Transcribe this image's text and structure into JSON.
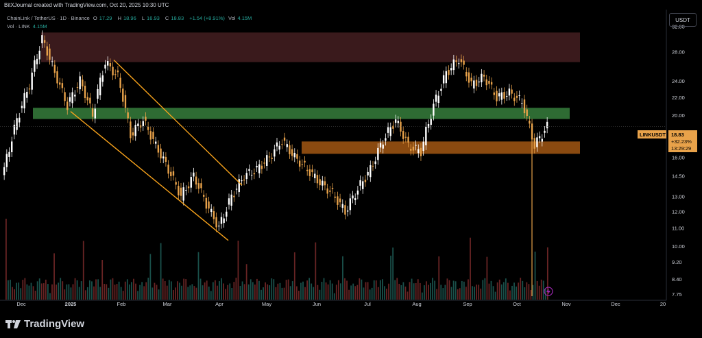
{
  "header": {
    "attribution": "BitXJournal created with TradingView.com, Oct 20, 2025 10:30 UTC"
  },
  "legend": {
    "symbol": "ChainLink / TetherUS · 1D · Binance",
    "open_label": "O",
    "open": "17.29",
    "high_label": "H",
    "high": "18.96",
    "low_label": "L",
    "low": "16.93",
    "close_label": "C",
    "close": "18.83",
    "change": "+1.54 (+8.91%)",
    "vol_label": "Vol",
    "vol": "4.15M"
  },
  "volume_legend": {
    "label": "Vol · LINK",
    "value": "4.15M"
  },
  "currency": "USDT",
  "price_badge": {
    "symbol": "LINKUSDT",
    "price": "18.83",
    "change_pct": "+32.23%",
    "countdown": "13:29:29"
  },
  "footer": {
    "brand": "TradingView"
  },
  "colors": {
    "up": "#26a69a",
    "down": "#e8a24a",
    "channel": "#f7a21b",
    "supply_zone": "#3a1a1c",
    "demand_zone_green": "#2e6b33",
    "demand_zone_orange": "#8a4a10"
  },
  "chart_data": {
    "type": "candlestick",
    "title": "ChainLink / TetherUS · 1D · Binance",
    "y_scale": "log",
    "ylim": [
      7.5,
      35
    ],
    "y_ticks": [
      7.75,
      8.4,
      9.2,
      10.0,
      11.0,
      12.0,
      13.0,
      14.5,
      16.0,
      18.0,
      20.0,
      22.0,
      24.0,
      28.0,
      32.0
    ],
    "x_ticks": [
      "Dec",
      "2025",
      "Feb",
      "Mar",
      "Apr",
      "May",
      "Jun",
      "Jul",
      "Aug",
      "Sep",
      "Oct",
      "Nov",
      "Dec",
      "20"
    ],
    "last_price": 18.83,
    "zones": [
      {
        "name": "supply",
        "low": 26.5,
        "high": 31.0,
        "from": "Dec",
        "to": "Nov",
        "color": "#3a1a1c"
      },
      {
        "name": "green-support",
        "low": 19.6,
        "high": 20.8,
        "from": "Dec",
        "to": "Nov",
        "color": "#2e6b33"
      },
      {
        "name": "orange-support",
        "low": 16.3,
        "high": 17.4,
        "from": "May",
        "to": "Nov",
        "color": "#8a4a10"
      }
    ],
    "channel": {
      "upper": [
        [
          "Feb",
          26.8
        ],
        [
          "Apr",
          13.8
        ]
      ],
      "lower": [
        [
          "Dec",
          20.4
        ],
        [
          "Apr",
          10.3
        ]
      ]
    },
    "close_series": [
      {
        "x": "Dec",
        "close": 15.0
      },
      {
        "x": "Dec",
        "close": 19.5
      },
      {
        "x": "Dec",
        "close": 23.5
      },
      {
        "x": "2025",
        "close": 30.0
      },
      {
        "x": "2025",
        "close": 25.0
      },
      {
        "x": "2025",
        "close": 21.0
      },
      {
        "x": "2025",
        "close": 24.0
      },
      {
        "x": "2025",
        "close": 20.0
      },
      {
        "x": "Feb",
        "close": 26.5
      },
      {
        "x": "Feb",
        "close": 24.5
      },
      {
        "x": "Feb",
        "close": 18.0
      },
      {
        "x": "Feb",
        "close": 19.5
      },
      {
        "x": "Mar",
        "close": 17.0
      },
      {
        "x": "Mar",
        "close": 15.0
      },
      {
        "x": "Mar",
        "close": 13.0
      },
      {
        "x": "Mar",
        "close": 14.5
      },
      {
        "x": "Apr",
        "close": 12.5
      },
      {
        "x": "Apr",
        "close": 11.0
      },
      {
        "x": "Apr",
        "close": 13.0
      },
      {
        "x": "Apr",
        "close": 14.5
      },
      {
        "x": "May",
        "close": 15.0
      },
      {
        "x": "May",
        "close": 16.0
      },
      {
        "x": "May",
        "close": 17.5
      },
      {
        "x": "May",
        "close": 16.0
      },
      {
        "x": "Jun",
        "close": 15.0
      },
      {
        "x": "Jun",
        "close": 14.0
      },
      {
        "x": "Jun",
        "close": 13.2
      },
      {
        "x": "Jun",
        "close": 12.0
      },
      {
        "x": "Jul",
        "close": 13.5
      },
      {
        "x": "Jul",
        "close": 15.0
      },
      {
        "x": "Jul",
        "close": 17.5
      },
      {
        "x": "Jul",
        "close": 19.5
      },
      {
        "x": "Aug",
        "close": 17.0
      },
      {
        "x": "Aug",
        "close": 16.5
      },
      {
        "x": "Aug",
        "close": 21.0
      },
      {
        "x": "Aug",
        "close": 25.0
      },
      {
        "x": "Sep",
        "close": 27.0
      },
      {
        "x": "Sep",
        "close": 23.5
      },
      {
        "x": "Sep",
        "close": 24.5
      },
      {
        "x": "Sep",
        "close": 22.0
      },
      {
        "x": "Oct",
        "close": 22.5
      },
      {
        "x": "Oct",
        "close": 21.5
      },
      {
        "x": "Oct",
        "close": 17.0
      },
      {
        "x": "Oct",
        "close": 18.83
      }
    ]
  }
}
